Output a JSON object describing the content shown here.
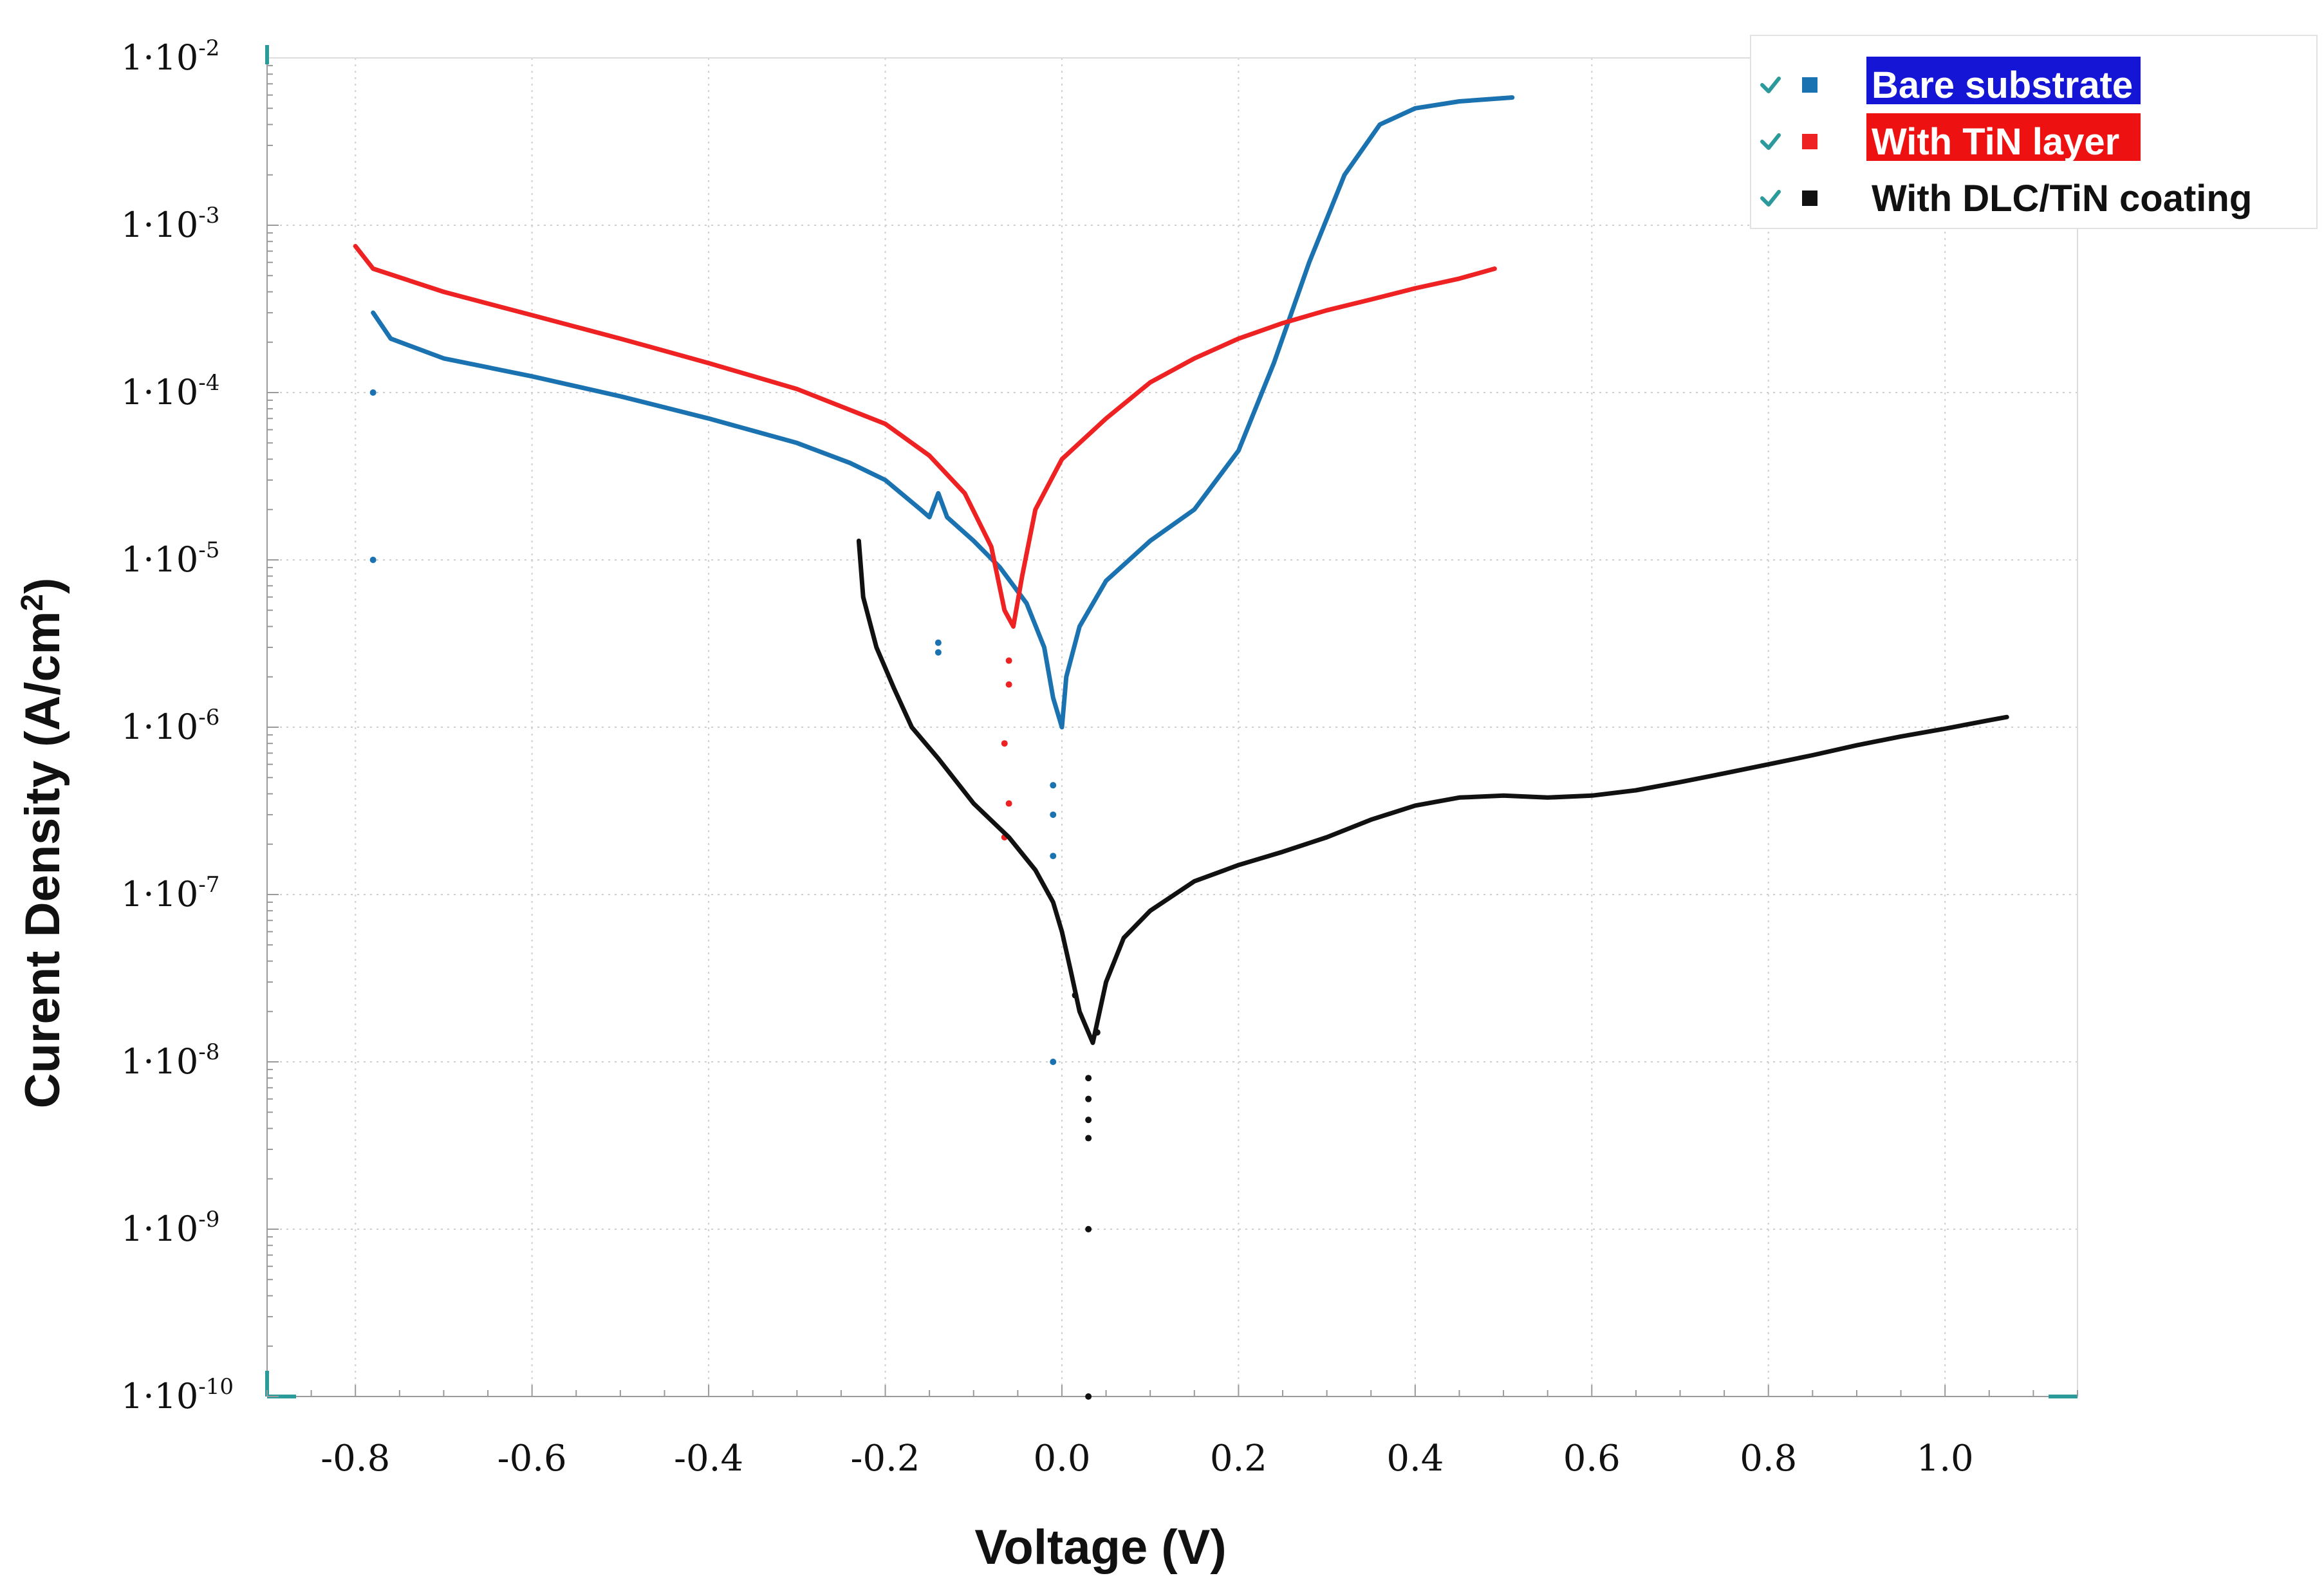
{
  "chart_data": {
    "type": "scatter",
    "xlabel": "Voltage (V)",
    "ylabel_main": "Curent Density (A/cm",
    "ylabel_sup": "2",
    "ylabel_close": ")",
    "xlim": [
      -0.9,
      1.15
    ],
    "ylim": [
      1e-10,
      0.01
    ],
    "yscale": "log",
    "x_ticks": [
      {
        "value": -0.8,
        "label": "-0.8"
      },
      {
        "value": -0.6,
        "label": "-0.6"
      },
      {
        "value": -0.4,
        "label": "-0.4"
      },
      {
        "value": -0.2,
        "label": "-0.2"
      },
      {
        "value": 0.0,
        "label": "0.0"
      },
      {
        "value": 0.2,
        "label": "0.2"
      },
      {
        "value": 0.4,
        "label": "0.4"
      },
      {
        "value": 0.6,
        "label": "0.6"
      },
      {
        "value": 0.8,
        "label": "0.8"
      },
      {
        "value": 1.0,
        "label": "1.0"
      }
    ],
    "y_ticks": [
      {
        "exp": -2,
        "base": "1·10",
        "sup": "-2"
      },
      {
        "exp": -3,
        "base": "1·10",
        "sup": "-3"
      },
      {
        "exp": -4,
        "base": "1·10",
        "sup": "-4"
      },
      {
        "exp": -5,
        "base": "1·10",
        "sup": "-5"
      },
      {
        "exp": -6,
        "base": "1·10",
        "sup": "-6"
      },
      {
        "exp": -7,
        "base": "1·10",
        "sup": "-7"
      },
      {
        "exp": -8,
        "base": "1·10",
        "sup": "-8"
      },
      {
        "exp": -9,
        "base": "1·10",
        "sup": "-9"
      },
      {
        "exp": -10,
        "base": "1·10",
        "sup": "-10"
      }
    ],
    "legend_position": "top-right",
    "grid": true,
    "series": [
      {
        "name": "Bare substrate",
        "color": "#1a73b0",
        "legend_bg": "#1515d6",
        "legend_fg": "#ffffff",
        "line": [
          [
            -0.78,
            0.0003
          ],
          [
            -0.76,
            0.00021
          ],
          [
            -0.7,
            0.00016
          ],
          [
            -0.6,
            0.000125
          ],
          [
            -0.5,
            9.5e-05
          ],
          [
            -0.4,
            7e-05
          ],
          [
            -0.3,
            5e-05
          ],
          [
            -0.24,
            3.8e-05
          ],
          [
            -0.2,
            3e-05
          ],
          [
            -0.16,
            2e-05
          ],
          [
            -0.15,
            1.8e-05
          ],
          [
            -0.14,
            2.5e-05
          ],
          [
            -0.13,
            1.8e-05
          ],
          [
            -0.1,
            1.3e-05
          ],
          [
            -0.07,
            9e-06
          ],
          [
            -0.04,
            5.5e-06
          ],
          [
            -0.02,
            3e-06
          ],
          [
            -0.01,
            1.5e-06
          ],
          [
            0.0,
            1e-06
          ],
          [
            0.005,
            2e-06
          ],
          [
            0.02,
            4e-06
          ],
          [
            0.05,
            7.5e-06
          ],
          [
            0.1,
            1.3e-05
          ],
          [
            0.15,
            2e-05
          ],
          [
            0.2,
            4.5e-05
          ],
          [
            0.24,
            0.00015
          ],
          [
            0.28,
            0.0006
          ],
          [
            0.32,
            0.002
          ],
          [
            0.36,
            0.004
          ],
          [
            0.4,
            0.005
          ],
          [
            0.45,
            0.0055
          ],
          [
            0.51,
            0.0058
          ]
        ],
        "points": [
          [
            -0.78,
            0.0001
          ],
          [
            -0.78,
            1e-05
          ],
          [
            -0.14,
            3.2e-06
          ],
          [
            -0.14,
            2.8e-06
          ],
          [
            -0.01,
            4.5e-07
          ],
          [
            -0.01,
            3e-07
          ],
          [
            -0.01,
            1.7e-07
          ],
          [
            -0.01,
            1e-08
          ]
        ]
      },
      {
        "name": "With TiN layer",
        "color": "#ee2222",
        "legend_bg": "#ee1111",
        "legend_fg": "#ffffff",
        "line": [
          [
            -0.8,
            0.00075
          ],
          [
            -0.78,
            0.00055
          ],
          [
            -0.7,
            0.0004
          ],
          [
            -0.6,
            0.00029
          ],
          [
            -0.5,
            0.00021
          ],
          [
            -0.4,
            0.00015
          ],
          [
            -0.3,
            0.000105
          ],
          [
            -0.2,
            6.5e-05
          ],
          [
            -0.15,
            4.2e-05
          ],
          [
            -0.11,
            2.5e-05
          ],
          [
            -0.08,
            1.2e-05
          ],
          [
            -0.065,
            5e-06
          ],
          [
            -0.055,
            4e-06
          ],
          [
            -0.045,
            8e-06
          ],
          [
            -0.03,
            2e-05
          ],
          [
            0.0,
            4e-05
          ],
          [
            0.05,
            7e-05
          ],
          [
            0.1,
            0.000115
          ],
          [
            0.15,
            0.00016
          ],
          [
            0.2,
            0.00021
          ],
          [
            0.25,
            0.00026
          ],
          [
            0.3,
            0.00031
          ],
          [
            0.35,
            0.00036
          ],
          [
            0.4,
            0.00042
          ],
          [
            0.45,
            0.00048
          ],
          [
            0.49,
            0.00055
          ]
        ],
        "points": [
          [
            -0.06,
            2.5e-06
          ],
          [
            -0.06,
            1.8e-06
          ],
          [
            -0.065,
            8e-07
          ],
          [
            -0.06,
            3.5e-07
          ],
          [
            -0.065,
            2.2e-07
          ]
        ]
      },
      {
        "name": "With DLC/TiN coating",
        "color": "#111111",
        "legend_bg": "#ffffff",
        "legend_fg": "#111111",
        "line": [
          [
            -0.23,
            1.3e-05
          ],
          [
            -0.225,
            6e-06
          ],
          [
            -0.21,
            3e-06
          ],
          [
            -0.19,
            1.7e-06
          ],
          [
            -0.17,
            1e-06
          ],
          [
            -0.14,
            6.5e-07
          ],
          [
            -0.1,
            3.5e-07
          ],
          [
            -0.06,
            2.2e-07
          ],
          [
            -0.03,
            1.4e-07
          ],
          [
            -0.01,
            9e-08
          ],
          [
            0.0,
            6e-08
          ],
          [
            0.01,
            3.5e-08
          ],
          [
            0.02,
            2e-08
          ],
          [
            0.035,
            1.3e-08
          ],
          [
            0.05,
            3e-08
          ],
          [
            0.07,
            5.5e-08
          ],
          [
            0.1,
            8e-08
          ],
          [
            0.15,
            1.2e-07
          ],
          [
            0.2,
            1.5e-07
          ],
          [
            0.25,
            1.8e-07
          ],
          [
            0.3,
            2.2e-07
          ],
          [
            0.35,
            2.8e-07
          ],
          [
            0.4,
            3.4e-07
          ],
          [
            0.45,
            3.8e-07
          ],
          [
            0.5,
            3.9e-07
          ],
          [
            0.55,
            3.8e-07
          ],
          [
            0.6,
            3.9e-07
          ],
          [
            0.65,
            4.2e-07
          ],
          [
            0.7,
            4.7e-07
          ],
          [
            0.75,
            5.3e-07
          ],
          [
            0.8,
            6e-07
          ],
          [
            0.85,
            6.8e-07
          ],
          [
            0.9,
            7.8e-07
          ],
          [
            0.95,
            8.8e-07
          ],
          [
            1.0,
            9.8e-07
          ],
          [
            1.05,
            1.1e-06
          ],
          [
            1.07,
            1.15e-06
          ]
        ],
        "points": [
          [
            0.03,
            8e-09
          ],
          [
            0.03,
            6e-09
          ],
          [
            0.03,
            4.5e-09
          ],
          [
            0.03,
            3.5e-09
          ],
          [
            0.03,
            1e-09
          ],
          [
            0.03,
            1e-10
          ],
          [
            0.015,
            2.5e-08
          ],
          [
            0.04,
            1.5e-08
          ]
        ]
      }
    ]
  }
}
